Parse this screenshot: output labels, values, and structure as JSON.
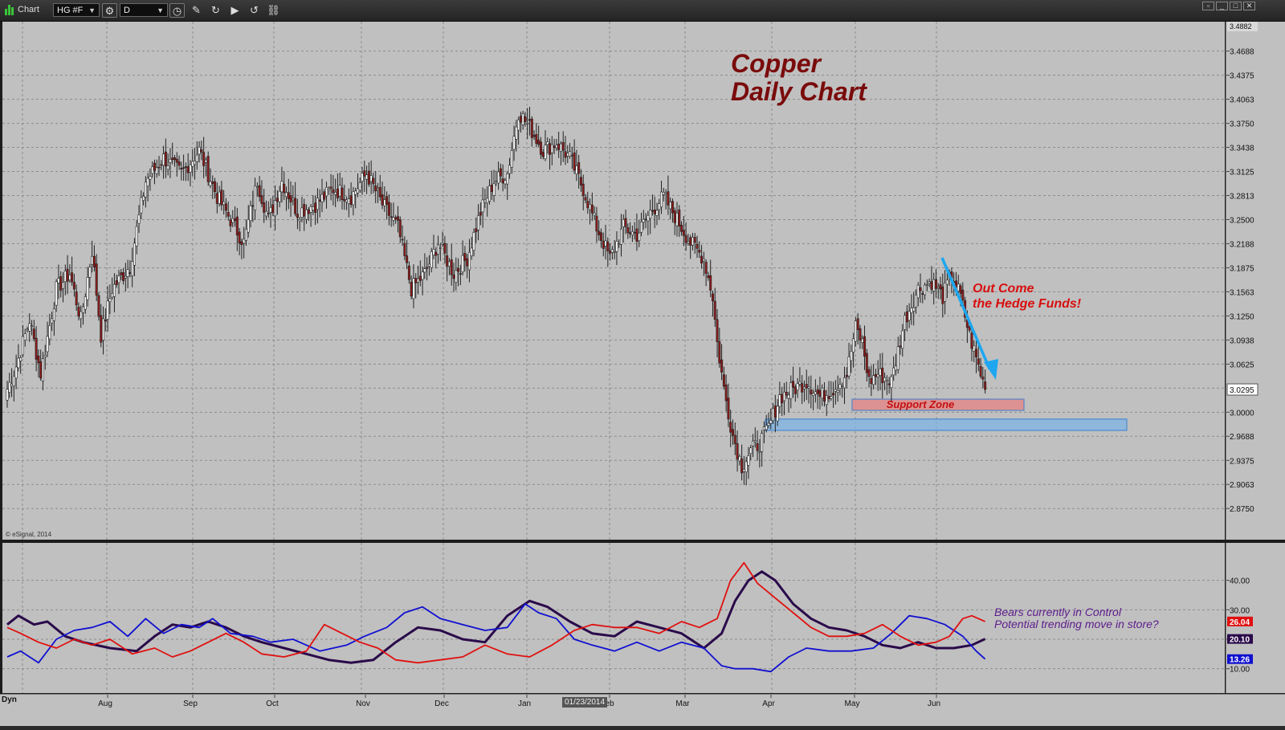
{
  "window": {
    "title": "Chart",
    "symbol": "HG #F",
    "interval": "D",
    "toolbar_icons": [
      "settings-icon",
      "clock-icon",
      "pencil-icon",
      "refresh-icon",
      "play-icon",
      "replay-icon",
      "link-icon"
    ]
  },
  "annotations": {
    "title": "Copper\nDaily Chart",
    "hedge_funds": "Out Come\nthe Hedge Funds!",
    "support_zone": "Support Zone",
    "indicator_note": "Bears currently in Control\nPotential trending move in store?"
  },
  "footer": {
    "copyright": "© eSignal, 2014",
    "mode": "Dyn",
    "cursor_date": "01/23/2014"
  },
  "colors": {
    "background": "#c0c0c0",
    "up_candle": "#ffffff",
    "down_candle": "#8b1a1a",
    "arrow": "#1ea7f0",
    "support_red_fill": "#e08a8a",
    "support_blue_fill": "#7fb4e6",
    "adx": "#2a0a4a",
    "di_plus": "#1010d0",
    "di_minus": "#e01010"
  },
  "chart_data": [
    {
      "type": "candlestick",
      "symbol": "HG #F",
      "ylim": [
        2.845,
        3.4882
      ],
      "yticks": [
        2.875,
        2.9063,
        2.9375,
        2.9688,
        3.0,
        3.0313,
        3.0625,
        3.0938,
        3.125,
        3.1563,
        3.1875,
        3.2188,
        3.25,
        3.2813,
        3.3125,
        3.3438,
        3.375,
        3.4063,
        3.4375,
        3.4688
      ],
      "ytick_labels": [
        "2.8750",
        "2.9063",
        "2.9375",
        "2.9688",
        "3.0000",
        "",
        "3.0625",
        "3.0938",
        "3.1250",
        "3.1563",
        "3.1875",
        "3.2188",
        "3.2500",
        "3.2813",
        "3.3125",
        "3.3438",
        "3.3750",
        "3.4063",
        "3.4375",
        "3.4688"
      ],
      "last_price_label": "3.0295",
      "last_price": 3.0295,
      "top_label": "3.4882",
      "xlabels": [
        "Aug",
        "Sep",
        "Oct",
        "Nov",
        "Dec",
        "Jan",
        "Feb",
        "Mar",
        "Apr",
        "May",
        "Jun"
      ],
      "grid": true,
      "waypoints": [
        [
          0,
          3.03
        ],
        [
          4,
          3.06
        ],
        [
          10,
          3.12
        ],
        [
          15,
          3.05
        ],
        [
          22,
          3.16
        ],
        [
          28,
          3.18
        ],
        [
          33,
          3.12
        ],
        [
          38,
          3.21
        ],
        [
          42,
          3.1
        ],
        [
          47,
          3.16
        ],
        [
          55,
          3.19
        ],
        [
          62,
          3.3
        ],
        [
          70,
          3.33
        ],
        [
          78,
          3.31
        ],
        [
          86,
          3.34
        ],
        [
          94,
          3.28
        ],
        [
          100,
          3.25
        ],
        [
          106,
          3.22
        ],
        [
          112,
          3.3
        ],
        [
          117,
          3.25
        ],
        [
          123,
          3.3
        ],
        [
          130,
          3.26
        ],
        [
          138,
          3.27
        ],
        [
          146,
          3.29
        ],
        [
          154,
          3.28
        ],
        [
          161,
          3.31
        ],
        [
          168,
          3.27
        ],
        [
          175,
          3.24
        ],
        [
          181,
          3.16
        ],
        [
          187,
          3.18
        ],
        [
          193,
          3.22
        ],
        [
          200,
          3.18
        ],
        [
          206,
          3.2
        ],
        [
          212,
          3.26
        ],
        [
          218,
          3.3
        ],
        [
          224,
          3.31
        ],
        [
          229,
          3.39
        ],
        [
          234,
          3.37
        ],
        [
          240,
          3.34
        ],
        [
          246,
          3.35
        ],
        [
          252,
          3.33
        ],
        [
          258,
          3.29
        ],
        [
          264,
          3.24
        ],
        [
          270,
          3.2
        ],
        [
          276,
          3.24
        ],
        [
          282,
          3.23
        ],
        [
          288,
          3.26
        ],
        [
          294,
          3.28
        ],
        [
          300,
          3.25
        ],
        [
          306,
          3.22
        ],
        [
          312,
          3.2
        ],
        [
          316,
          3.15
        ],
        [
          318,
          3.09
        ],
        [
          321,
          3.03
        ],
        [
          325,
          2.97
        ],
        [
          329,
          2.93
        ],
        [
          333,
          2.95
        ],
        [
          337,
          2.96
        ],
        [
          341,
          2.98
        ],
        [
          346,
          3.02
        ],
        [
          352,
          3.03
        ],
        [
          358,
          3.04
        ],
        [
          364,
          3.02
        ],
        [
          370,
          3.03
        ],
        [
          376,
          3.05
        ],
        [
          380,
          3.11
        ],
        [
          383,
          3.09
        ],
        [
          386,
          3.04
        ],
        [
          390,
          3.05
        ],
        [
          396,
          3.04
        ],
        [
          402,
          3.12
        ],
        [
          408,
          3.16
        ],
        [
          414,
          3.17
        ],
        [
          419,
          3.15
        ],
        [
          423,
          3.18
        ],
        [
          427,
          3.15
        ],
        [
          431,
          3.1
        ],
        [
          434,
          3.07
        ],
        [
          438,
          3.03
        ]
      ],
      "ohlc_note": "daily bars generated between waypoints (bar index, close)"
    },
    {
      "type": "line",
      "title": "",
      "ylim": [
        5,
        50
      ],
      "yticks": [
        10,
        20,
        30,
        40
      ],
      "ytick_labels": [
        "10.00",
        "20.00",
        "30.00",
        "40.00"
      ],
      "series": [
        {
          "name": "",
          "last_label": "20.10",
          "color": "#2a0a4a",
          "points": [
            [
              0,
              25
            ],
            [
              5,
              28
            ],
            [
              12,
              25
            ],
            [
              18,
              26
            ],
            [
              26,
              21
            ],
            [
              34,
              19
            ],
            [
              46,
              17
            ],
            [
              58,
              16
            ],
            [
              66,
              21
            ],
            [
              74,
              25
            ],
            [
              82,
              24
            ],
            [
              90,
              26
            ],
            [
              98,
              24
            ],
            [
              106,
              21
            ],
            [
              114,
              19
            ],
            [
              124,
              17
            ],
            [
              134,
              15
            ],
            [
              144,
              13
            ],
            [
              154,
              12
            ],
            [
              164,
              13
            ],
            [
              174,
              19
            ],
            [
              184,
              24
            ],
            [
              194,
              23
            ],
            [
              204,
              20
            ],
            [
              214,
              19
            ],
            [
              224,
              28
            ],
            [
              234,
              33
            ],
            [
              242,
              31
            ],
            [
              252,
              26
            ],
            [
              262,
              22
            ],
            [
              272,
              21
            ],
            [
              282,
              26
            ],
            [
              292,
              24
            ],
            [
              302,
              22
            ],
            [
              312,
              17
            ],
            [
              320,
              22
            ],
            [
              326,
              33
            ],
            [
              332,
              40
            ],
            [
              338,
              43
            ],
            [
              344,
              40
            ],
            [
              352,
              32
            ],
            [
              360,
              27
            ],
            [
              368,
              24
            ],
            [
              376,
              23
            ],
            [
              384,
              21
            ],
            [
              392,
              18
            ],
            [
              400,
              17
            ],
            [
              408,
              19
            ],
            [
              416,
              17
            ],
            [
              424,
              17
            ],
            [
              432,
              18
            ],
            [
              438,
              20.1
            ]
          ]
        },
        {
          "name": "",
          "last_label": "13.26",
          "color": "#1010d0",
          "points": [
            [
              0,
              14
            ],
            [
              6,
              16
            ],
            [
              14,
              12
            ],
            [
              22,
              20
            ],
            [
              30,
              23
            ],
            [
              38,
              24
            ],
            [
              46,
              26
            ],
            [
              54,
              21
            ],
            [
              62,
              27
            ],
            [
              70,
              22
            ],
            [
              78,
              25
            ],
            [
              86,
              24
            ],
            [
              92,
              27
            ],
            [
              100,
              22
            ],
            [
              110,
              21
            ],
            [
              118,
              19
            ],
            [
              128,
              20
            ],
            [
              140,
              16
            ],
            [
              152,
              18
            ],
            [
              160,
              21
            ],
            [
              170,
              24
            ],
            [
              178,
              29
            ],
            [
              186,
              31
            ],
            [
              194,
              27
            ],
            [
              204,
              25
            ],
            [
              214,
              23
            ],
            [
              224,
              24
            ],
            [
              232,
              32
            ],
            [
              238,
              29
            ],
            [
              246,
              27
            ],
            [
              254,
              20
            ],
            [
              262,
              18
            ],
            [
              272,
              16
            ],
            [
              282,
              19
            ],
            [
              292,
              16
            ],
            [
              302,
              19
            ],
            [
              312,
              17
            ],
            [
              320,
              11
            ],
            [
              326,
              10
            ],
            [
              334,
              10
            ],
            [
              342,
              9
            ],
            [
              350,
              14
            ],
            [
              358,
              17
            ],
            [
              368,
              16
            ],
            [
              378,
              16
            ],
            [
              388,
              17
            ],
            [
              396,
              22
            ],
            [
              404,
              28
            ],
            [
              412,
              27
            ],
            [
              420,
              25
            ],
            [
              428,
              21
            ],
            [
              434,
              16
            ],
            [
              438,
              13.26
            ]
          ]
        },
        {
          "name": "",
          "last_label": "26.04",
          "color": "#e01010",
          "points": [
            [
              0,
              24
            ],
            [
              6,
              22
            ],
            [
              14,
              19
            ],
            [
              22,
              17
            ],
            [
              30,
              20
            ],
            [
              38,
              18
            ],
            [
              46,
              20
            ],
            [
              56,
              15
            ],
            [
              66,
              17
            ],
            [
              74,
              14
            ],
            [
              82,
              16
            ],
            [
              90,
              19
            ],
            [
              98,
              22
            ],
            [
              106,
              19
            ],
            [
              114,
              15
            ],
            [
              124,
              14
            ],
            [
              134,
              16
            ],
            [
              142,
              25
            ],
            [
              150,
              22
            ],
            [
              158,
              19
            ],
            [
              166,
              17
            ],
            [
              174,
              13
            ],
            [
              184,
              12
            ],
            [
              194,
              13
            ],
            [
              204,
              14
            ],
            [
              214,
              18
            ],
            [
              224,
              15
            ],
            [
              234,
              14
            ],
            [
              244,
              18
            ],
            [
              254,
              23
            ],
            [
              262,
              25
            ],
            [
              272,
              24
            ],
            [
              282,
              24
            ],
            [
              292,
              22
            ],
            [
              302,
              26
            ],
            [
              310,
              24
            ],
            [
              318,
              27
            ],
            [
              324,
              40
            ],
            [
              330,
              46
            ],
            [
              336,
              39
            ],
            [
              344,
              34
            ],
            [
              352,
              29
            ],
            [
              360,
              24
            ],
            [
              368,
              21
            ],
            [
              376,
              21
            ],
            [
              384,
              22
            ],
            [
              392,
              25
            ],
            [
              400,
              21
            ],
            [
              408,
              18
            ],
            [
              416,
              19
            ],
            [
              422,
              21
            ],
            [
              428,
              27
            ],
            [
              432,
              28
            ],
            [
              438,
              26.04
            ]
          ]
        }
      ]
    }
  ]
}
